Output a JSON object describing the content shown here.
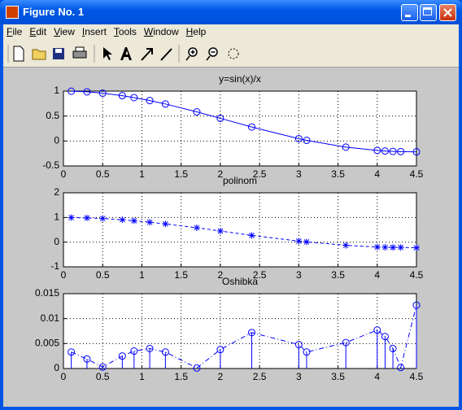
{
  "window": {
    "title": "Figure No. 1",
    "menu": [
      "File",
      "Edit",
      "View",
      "Insert",
      "Tools",
      "Window",
      "Help"
    ]
  },
  "chart_data": [
    {
      "type": "line",
      "title": "y=sin(x)/x",
      "color": "#0000ff",
      "marker": "o",
      "linestyle": "solid",
      "grid": true,
      "x": [
        0.1,
        0.3,
        0.5,
        0.75,
        0.9,
        1.1,
        1.3,
        1.7,
        2,
        2.4,
        3,
        3.1,
        3.6,
        4,
        4.1,
        4.2,
        4.3,
        4.5
      ],
      "values": [
        0.998,
        0.985,
        0.959,
        0.909,
        0.87,
        0.811,
        0.742,
        0.584,
        0.455,
        0.281,
        0.047,
        0.013,
        -0.123,
        -0.189,
        -0.201,
        -0.208,
        -0.212,
        -0.217
      ],
      "xlim": [
        0,
        4.5
      ],
      "xticks": [
        0,
        0.5,
        1,
        1.5,
        2,
        2.5,
        3,
        3.5,
        4,
        4.5
      ],
      "ylim": [
        -0.5,
        1
      ],
      "yticks": [
        -0.5,
        0,
        0.5,
        1
      ]
    },
    {
      "type": "line",
      "title": "polinom",
      "color": "#0000ff",
      "marker": "*",
      "linestyle": "dashed",
      "grid": true,
      "x": [
        0.1,
        0.3,
        0.5,
        0.75,
        0.9,
        1.1,
        1.3,
        1.7,
        2,
        2.4,
        3,
        3.1,
        3.6,
        4,
        4.1,
        4.2,
        4.3,
        4.5
      ],
      "values": [
        0.995,
        0.983,
        0.959,
        0.906,
        0.867,
        0.807,
        0.739,
        0.584,
        0.451,
        0.274,
        0.042,
        0.01,
        -0.128,
        -0.197,
        -0.207,
        -0.212,
        -0.212,
        -0.23
      ],
      "xlim": [
        0,
        4.5
      ],
      "xticks": [
        0,
        0.5,
        1,
        1.5,
        2,
        2.5,
        3,
        3.5,
        4,
        4.5
      ],
      "ylim": [
        -1,
        2
      ],
      "yticks": [
        -1,
        0,
        1,
        2
      ]
    },
    {
      "type": "stem",
      "title": "Oshibka",
      "color": "#0000ff",
      "marker": "o",
      "linestyle": "dashdot",
      "grid": true,
      "x": [
        0.1,
        0.3,
        0.5,
        0.75,
        0.9,
        1.1,
        1.3,
        1.7,
        2,
        2.4,
        3,
        3.1,
        3.6,
        4,
        4.1,
        4.2,
        4.3,
        4.5
      ],
      "values": [
        0.0033,
        0.0019,
        0.0003,
        0.0025,
        0.0035,
        0.004,
        0.0033,
        0.0001,
        0.0038,
        0.0072,
        0.0048,
        0.0033,
        0.0052,
        0.0077,
        0.0064,
        0.004,
        0.0002,
        0.0127
      ],
      "xlim": [
        0,
        4.5
      ],
      "xticks": [
        0,
        0.5,
        1,
        1.5,
        2,
        2.5,
        3,
        3.5,
        4,
        4.5
      ],
      "ylim": [
        0,
        0.015
      ],
      "yticks": [
        0,
        0.005,
        0.01,
        0.015
      ]
    }
  ]
}
